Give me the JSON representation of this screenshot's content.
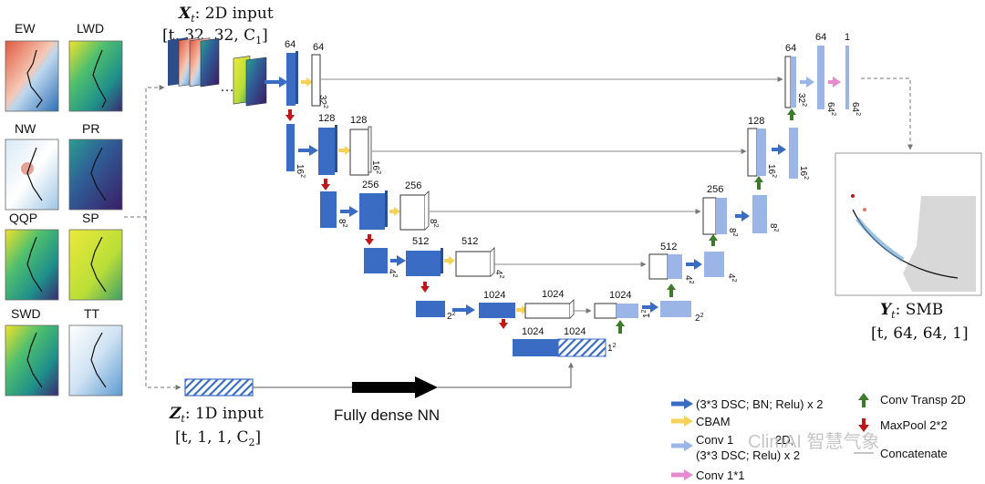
{
  "figure": {
    "input_2d": {
      "title_var": "X",
      "title_sub": "t",
      "title_rest": ": 2D input",
      "shape": "[t, 32, 32, C",
      "shape_sub": "1",
      "shape_end": "]",
      "ellipsis": "…"
    },
    "input_1d": {
      "title_var": "Z",
      "title_sub": "t",
      "title_rest": ": 1D input",
      "shape": "[t, 1, 1, C",
      "shape_sub": "2",
      "shape_end": "]"
    },
    "output": {
      "title_var": "Y",
      "title_sub": "t",
      "title_rest": ": SMB",
      "shape": "[t, 64, 64, 1]"
    },
    "dense_label": "Fully dense NN",
    "variables": [
      "EW",
      "LWD",
      "NW",
      "PR",
      "QQP",
      "SP",
      "SWD",
      "TT"
    ],
    "channels": {
      "c64": "64",
      "c128": "128",
      "c256": "256",
      "c512": "512",
      "c1024": "1024",
      "c1": "1"
    },
    "sizes": {
      "s32": "32",
      "s16": "16",
      "s8": "8",
      "s4": "4",
      "s2": "2",
      "s1": "1",
      "s64": "64",
      "sq": "2"
    },
    "legend": {
      "dsc": "(3*3 DSC; BN; Relu) x 2",
      "cbam": "CBAM",
      "conv1": "Conv 1",
      "conv1_mid": "2D;",
      "dsc2": "(3*3 DSC; Relu) x 2",
      "conv11": "Conv 1*1",
      "transp": "Conv Transp 2D",
      "maxpool": "MaxPool 2*2",
      "concat": "Concatenate"
    },
    "watermark": "ClimAI 智慧气象",
    "colors": {
      "dark_blue": "#3b6cc4",
      "light_blue": "#9bb5e6",
      "cbam_yellow": "#f5d25a",
      "pink": "#e68ad0",
      "red": "#c01818",
      "green": "#3d7a2a"
    }
  }
}
